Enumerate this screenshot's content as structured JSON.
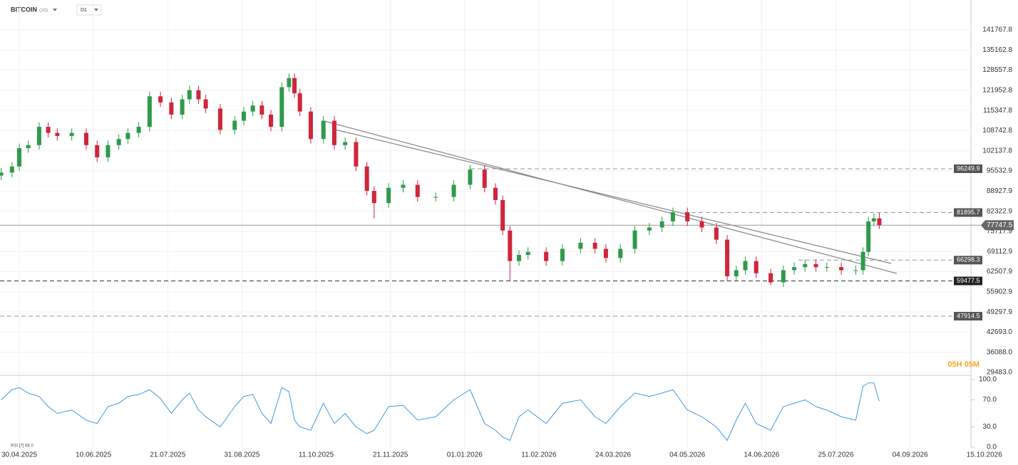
{
  "header": {
    "symbol": "BITCOIN",
    "kind": "CFD",
    "interval": "D1",
    "timer": "05H 05M"
  },
  "chart_data": [
    {
      "type": "candlestick",
      "up_color": "#2e9b4b",
      "down_color": "#d0253b",
      "xlim": [
        -10.63,
        551.6
      ],
      "xticks": [
        {
          "value": 0,
          "label": "30.04.2025"
        },
        {
          "value": 41,
          "label": "10.06.2025"
        },
        {
          "value": 82,
          "label": "21.07.2025"
        },
        {
          "value": 123,
          "label": "31.08.2025"
        },
        {
          "value": 164,
          "label": "11.10.2025"
        },
        {
          "value": 205,
          "label": "21.11.2025"
        },
        {
          "value": 246,
          "label": "01.01.2026"
        },
        {
          "value": 287,
          "label": "11.02.2026"
        },
        {
          "value": 328,
          "label": "24.03.2026"
        },
        {
          "value": 369,
          "label": "04.05.2026"
        },
        {
          "value": 410,
          "label": "14.06.2026"
        },
        {
          "value": 451,
          "label": "25.07.2026"
        },
        {
          "value": 492,
          "label": "04.09.2026"
        },
        {
          "value": 533,
          "label": "15.10.2026"
        }
      ],
      "ylim": [
        28549.2,
        151572.4
      ],
      "yticks": [
        {
          "value": 29483,
          "label": "29483.0"
        },
        {
          "value": 36088,
          "label": "36088.0"
        },
        {
          "value": 42693,
          "label": "42693.0"
        },
        {
          "value": 49297.9,
          "label": "49297.9"
        },
        {
          "value": 55902.9,
          "label": "55902.9"
        },
        {
          "value": 62507.9,
          "label": "62507.9"
        },
        {
          "value": 69112.9,
          "label": "69112.9"
        },
        {
          "value": 75717.9,
          "label": "75717.9"
        },
        {
          "value": 82322.9,
          "label": "82322.9"
        },
        {
          "value": 88927.9,
          "label": "88927.9"
        },
        {
          "value": 95532.9,
          "label": "95532.9"
        },
        {
          "value": 102137.8,
          "label": "102137.8"
        },
        {
          "value": 108742.8,
          "label": "108742.8"
        },
        {
          "value": 115347.8,
          "label": "115347.8"
        },
        {
          "value": 121952.8,
          "label": "121952.8"
        },
        {
          "value": 128557.8,
          "label": "128557.8"
        },
        {
          "value": 135162.8,
          "label": "135162.8"
        },
        {
          "value": 141767.8,
          "label": "141767.8"
        }
      ],
      "x": [
        -10,
        -4,
        0,
        5,
        11,
        16,
        21,
        29,
        37,
        43,
        49,
        55,
        60,
        66,
        72,
        78,
        84,
        90,
        94,
        99,
        103,
        111,
        119,
        124,
        129,
        134,
        139,
        145,
        149,
        152,
        155,
        161,
        168,
        174,
        180,
        186,
        192,
        196,
        204,
        212,
        220,
        230,
        240,
        249,
        257,
        263,
        267,
        271,
        276,
        281,
        291,
        300,
        310,
        318,
        324,
        332,
        340,
        348,
        355,
        361,
        369,
        377,
        385,
        391,
        396,
        401,
        407,
        415,
        422,
        428,
        434,
        440,
        446,
        454,
        462,
        466,
        469,
        472,
        475
      ],
      "open": [
        94000,
        95000,
        97000,
        103000,
        104000,
        110000,
        108000,
        107000,
        108000,
        104000,
        100000,
        104000,
        106000,
        108000,
        110000,
        120000,
        118000,
        114000,
        119000,
        122000,
        119000,
        116000,
        109000,
        112000,
        115000,
        117000,
        114000,
        110000,
        123000,
        126000,
        121000,
        115000,
        106000,
        112000,
        104000,
        105000,
        97000,
        89000,
        85000,
        90000,
        91000,
        87000,
        87000,
        91000,
        96000,
        90000,
        86000,
        76000,
        66000,
        68000,
        69000,
        66000,
        70000,
        72000,
        70000,
        67000,
        70000,
        76000,
        77000,
        79000,
        82000,
        79000,
        77000,
        73000,
        61000,
        63000,
        66000,
        62000,
        59000,
        63000,
        64000,
        65000,
        64000,
        64000,
        63000,
        63000,
        69000,
        79000,
        80000
      ],
      "high": [
        96500,
        98500,
        104500,
        105500,
        111500,
        111500,
        109500,
        109500,
        109500,
        105500,
        105500,
        107500,
        109500,
        111500,
        121500,
        121500,
        119500,
        120500,
        123500,
        123500,
        120500,
        117500,
        113500,
        116500,
        118500,
        118500,
        115500,
        124500,
        127500,
        127500,
        122500,
        116500,
        113500,
        113500,
        106500,
        106500,
        98500,
        90500,
        91500,
        92500,
        92500,
        88500,
        92500,
        97500,
        97500,
        91500,
        87500,
        77500,
        69500,
        70500,
        70500,
        71500,
        73500,
        73500,
        71500,
        71500,
        77500,
        78500,
        80500,
        83500,
        83500,
        80500,
        78500,
        74500,
        64500,
        67500,
        67500,
        63500,
        64500,
        65500,
        66500,
        66500,
        65500,
        65500,
        64500,
        70500,
        80500,
        81500,
        81800
      ],
      "low": [
        92500,
        93500,
        95500,
        101500,
        102500,
        106500,
        105500,
        105500,
        102500,
        98500,
        98500,
        102500,
        104500,
        106500,
        108500,
        116500,
        112500,
        112500,
        117500,
        117500,
        114500,
        107500,
        107500,
        110500,
        113500,
        112500,
        108500,
        108500,
        121500,
        119500,
        113500,
        104500,
        104500,
        102500,
        102500,
        95500,
        87500,
        80000,
        83500,
        88500,
        85500,
        85500,
        85500,
        89500,
        88500,
        84500,
        74500,
        59500,
        64500,
        66500,
        64500,
        64500,
        68500,
        68500,
        65500,
        65500,
        68500,
        74500,
        75500,
        77500,
        77500,
        75500,
        71500,
        59500,
        59500,
        61500,
        60500,
        58000,
        57500,
        61500,
        62500,
        62500,
        62500,
        61500,
        61500,
        61500,
        67500,
        77500,
        76500
      ],
      "close": [
        95000,
        97000,
        103000,
        104000,
        110000,
        108000,
        107000,
        108000,
        104000,
        100000,
        104000,
        106000,
        108000,
        110000,
        120000,
        118000,
        114000,
        119000,
        122000,
        119000,
        116000,
        109000,
        112000,
        115000,
        117000,
        114000,
        110000,
        123000,
        126000,
        121000,
        115000,
        106000,
        112000,
        104000,
        105000,
        97000,
        89000,
        85000,
        90000,
        91000,
        87000,
        87000,
        91000,
        96000,
        90000,
        86000,
        76000,
        66000,
        68000,
        69000,
        66000,
        70000,
        72000,
        70000,
        67000,
        70000,
        76000,
        77000,
        79000,
        82000,
        79000,
        77000,
        73000,
        61000,
        63000,
        66000,
        62000,
        59000,
        63000,
        64000,
        65000,
        64000,
        64000,
        63000,
        63000,
        69000,
        79000,
        80000,
        77747.5
      ],
      "levels": [
        {
          "value": 96249.9,
          "dashed": true
        },
        {
          "value": 81895.7,
          "dashed": true
        },
        {
          "value": 66298.3,
          "dashed": true
        },
        {
          "value": 59477.5,
          "dashed": true
        },
        {
          "value": 47914.5,
          "dashed": true
        }
      ],
      "last_price": 77747.5
    },
    {
      "type": "line",
      "label": "RSI [7] 68.0",
      "color": "#3d9be9",
      "ylim": [
        0,
        100
      ],
      "yticks": [
        {
          "value": 100,
          "label": "100.0"
        },
        {
          "value": 70,
          "label": "70.0"
        },
        {
          "value": 30,
          "label": "30.0"
        },
        {
          "value": 0,
          "label": "0.0"
        }
      ],
      "values": [
        70,
        85,
        88,
        80,
        75,
        60,
        50,
        55,
        40,
        35,
        60,
        65,
        75,
        78,
        85,
        72,
        50,
        70,
        80,
        55,
        45,
        30,
        60,
        75,
        78,
        50,
        35,
        88,
        82,
        40,
        30,
        25,
        65,
        35,
        50,
        30,
        20,
        25,
        60,
        62,
        40,
        45,
        70,
        85,
        35,
        25,
        15,
        10,
        45,
        55,
        35,
        65,
        70,
        45,
        35,
        60,
        80,
        75,
        80,
        85,
        55,
        45,
        30,
        10,
        40,
        65,
        35,
        25,
        60,
        65,
        70,
        60,
        55,
        45,
        40,
        90,
        95,
        95,
        68
      ]
    }
  ]
}
